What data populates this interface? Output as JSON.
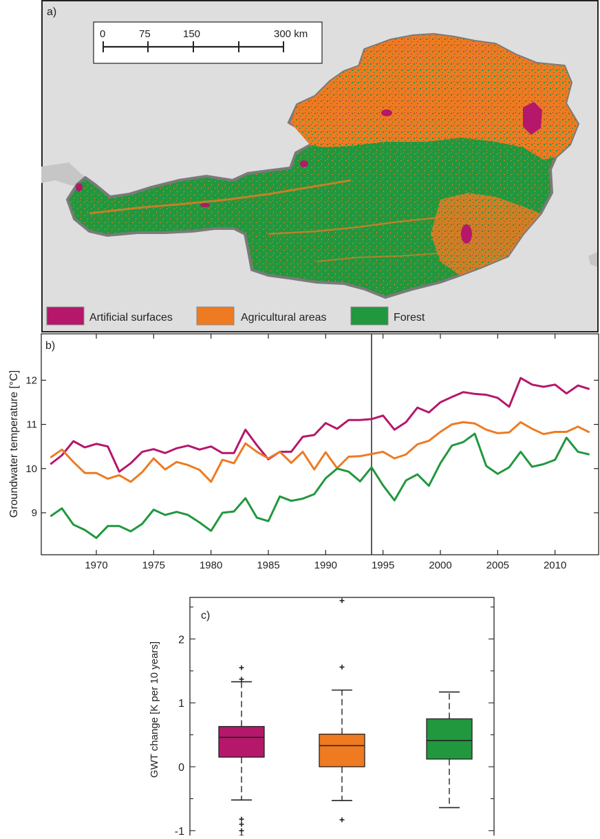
{
  "panel_a": {
    "label": "a)",
    "scale_bar": {
      "ticks": [
        "0",
        "75",
        "150",
        "300 km"
      ]
    },
    "legend": [
      {
        "label": "Artificial surfaces",
        "color": "#b5176a"
      },
      {
        "label": "Agricultural areas",
        "color": "#ee7a22"
      },
      {
        "label": "Forest",
        "color": "#21973e"
      }
    ],
    "map_colors": {
      "background": "#dedede",
      "border": "#7a7a7a",
      "lakes": "#bcbcbc"
    }
  },
  "chart_data": [
    {
      "type": "line",
      "label": "b)",
      "title": "",
      "xlabel": "",
      "ylabel": "Groundwater temperature [°C]",
      "xlim": [
        1965.2,
        2013.8
      ],
      "ylim": [
        8.05,
        13.05
      ],
      "xticks": [
        1970,
        1975,
        1980,
        1985,
        1990,
        1995,
        2000,
        2005,
        2010
      ],
      "yticks": [
        9,
        10,
        11,
        12
      ],
      "vline": 1994,
      "x": [
        1966,
        1967,
        1968,
        1969,
        1970,
        1971,
        1972,
        1973,
        1974,
        1975,
        1976,
        1977,
        1978,
        1979,
        1980,
        1981,
        1982,
        1983,
        1984,
        1985,
        1986,
        1987,
        1988,
        1989,
        1990,
        1991,
        1992,
        1993,
        1994,
        1995,
        1996,
        1997,
        1998,
        1999,
        2000,
        2001,
        2002,
        2003,
        2004,
        2005,
        2006,
        2007,
        2008,
        2009,
        2010,
        2011,
        2012,
        2013
      ],
      "series": [
        {
          "color": "#b5176a",
          "values": [
            10.1,
            10.3,
            10.62,
            10.48,
            10.56,
            10.5,
            9.93,
            10.12,
            10.38,
            10.44,
            10.35,
            10.46,
            10.52,
            10.43,
            10.5,
            10.35,
            10.35,
            10.88,
            10.53,
            10.21,
            10.38,
            10.38,
            10.72,
            10.76,
            11.03,
            10.9,
            11.1,
            11.1,
            11.12,
            11.2,
            10.88,
            11.05,
            11.38,
            11.27,
            11.5,
            11.62,
            11.73,
            11.69,
            11.67,
            11.6,
            11.4,
            12.05,
            11.9,
            11.85,
            11.9,
            11.7,
            11.88,
            11.8
          ]
        },
        {
          "color": "#ee7a22",
          "values": [
            10.25,
            10.43,
            10.15,
            9.9,
            9.9,
            9.77,
            9.85,
            9.7,
            9.92,
            10.23,
            9.98,
            10.15,
            10.08,
            9.97,
            9.7,
            10.2,
            10.12,
            10.57,
            10.38,
            10.23,
            10.38,
            10.13,
            10.38,
            9.98,
            10.37,
            10.01,
            10.27,
            10.28,
            10.33,
            10.38,
            10.23,
            10.32,
            10.55,
            10.63,
            10.83,
            11.0,
            11.05,
            11.02,
            10.88,
            10.8,
            10.82,
            11.05,
            10.9,
            10.78,
            10.83,
            10.83,
            10.95,
            10.82
          ]
        },
        {
          "color": "#21973e",
          "values": [
            8.92,
            9.1,
            8.73,
            8.61,
            8.43,
            8.7,
            8.7,
            8.58,
            8.75,
            9.07,
            8.95,
            9.02,
            8.95,
            8.78,
            8.59,
            9.0,
            9.03,
            9.33,
            8.89,
            8.81,
            9.37,
            9.27,
            9.32,
            9.42,
            9.78,
            10.0,
            9.93,
            9.71,
            10.03,
            9.62,
            9.28,
            9.73,
            9.87,
            9.61,
            10.12,
            10.52,
            10.6,
            10.79,
            10.06,
            9.88,
            10.03,
            10.38,
            10.04,
            10.1,
            10.2,
            10.7,
            10.38,
            10.32
          ]
        }
      ]
    },
    {
      "type": "box",
      "label": "c)",
      "title": "",
      "xlabel": "",
      "ylabel": "GWT change [K per 10 years]",
      "ylim": [
        -1.12,
        2.65
      ],
      "yticks": [
        -1,
        0,
        1,
        2
      ],
      "boxes": [
        {
          "color": "#b5176a",
          "q1": 0.15,
          "median": 0.46,
          "q3": 0.63,
          "whisker_low": -0.52,
          "whisker_high": 1.33,
          "outliers": [
            1.55,
            1.37,
            -0.82,
            -0.9,
            -1.0,
            -1.08
          ]
        },
        {
          "color": "#ee7a22",
          "q1": 0.0,
          "median": 0.33,
          "q3": 0.51,
          "whisker_low": -0.53,
          "whisker_high": 1.2,
          "outliers": [
            2.6,
            1.56,
            -0.83
          ]
        },
        {
          "color": "#21973e",
          "q1": 0.12,
          "median": 0.41,
          "q3": 0.75,
          "whisker_low": -0.64,
          "whisker_high": 1.17,
          "outliers": []
        }
      ]
    }
  ]
}
